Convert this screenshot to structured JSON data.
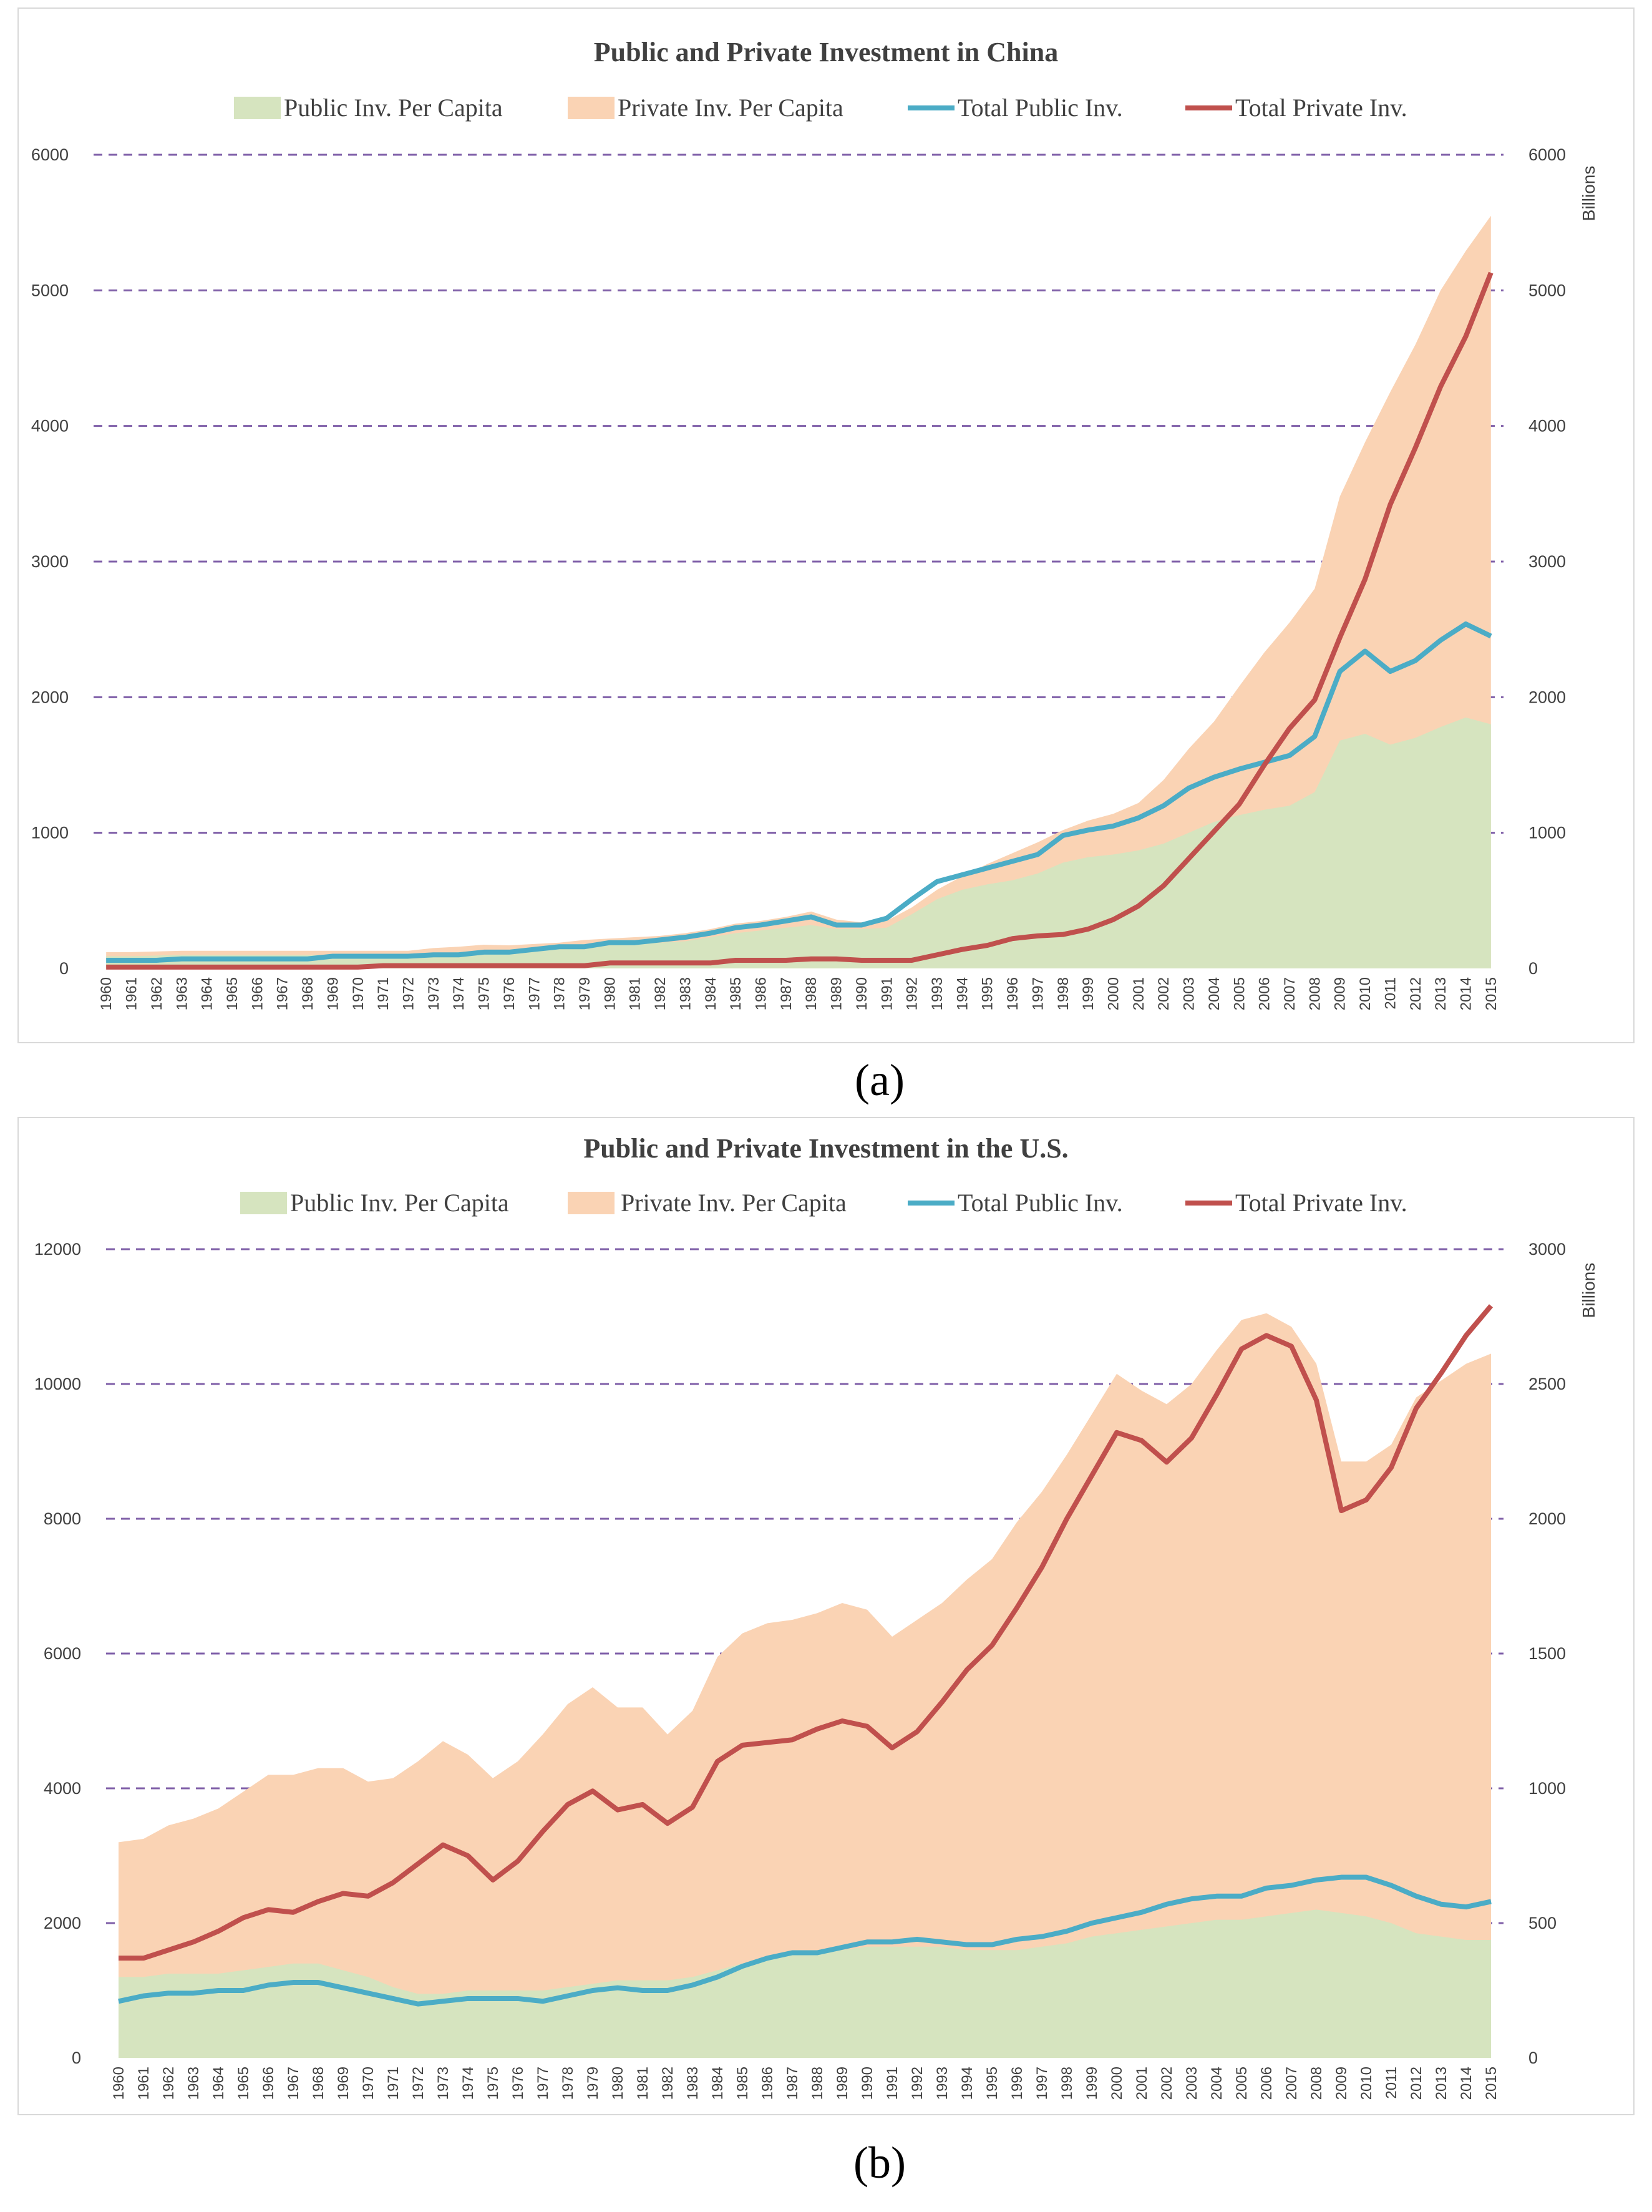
{
  "labels": {
    "a": "(a)",
    "b": "(b)"
  },
  "colors": {
    "public_area": "#d6e4bf",
    "private_area": "#fad3b4",
    "total_public_line": "#4bacc6",
    "total_private_line": "#c0504d",
    "grid": "#7f5fa8"
  },
  "chart_data": [
    {
      "type": "area",
      "title": "Public and Private Investment in China",
      "legend": [
        "Public Inv. Per Capita",
        "Private Inv. Per Capita",
        "Total Public Inv.",
        "Total Private Inv."
      ],
      "right_axis_label": "Billions",
      "x": [
        1960,
        1961,
        1962,
        1963,
        1964,
        1965,
        1966,
        1967,
        1968,
        1969,
        1970,
        1971,
        1972,
        1973,
        1974,
        1975,
        1976,
        1977,
        1978,
        1979,
        1980,
        1981,
        1982,
        1983,
        1984,
        1985,
        1986,
        1987,
        1988,
        1989,
        1990,
        1991,
        1992,
        1993,
        1994,
        1995,
        1996,
        1997,
        1998,
        1999,
        2000,
        2001,
        2002,
        2003,
        2004,
        2005,
        2006,
        2007,
        2008,
        2009,
        2010,
        2011,
        2012,
        2013,
        2014,
        2015
      ],
      "left_ylim": [
        0,
        6000
      ],
      "left_ticks": [
        0,
        1000,
        2000,
        3000,
        4000,
        5000,
        6000
      ],
      "right_ylim": [
        0,
        6000
      ],
      "right_ticks": [
        0,
        1000,
        2000,
        3000,
        4000,
        5000,
        6000
      ],
      "series": [
        {
          "name": "Public Inv. Per Capita",
          "kind": "area",
          "axis": "left",
          "values": [
            90,
            90,
            95,
            100,
            100,
            100,
            100,
            100,
            100,
            100,
            100,
            100,
            100,
            110,
            120,
            130,
            130,
            140,
            150,
            150,
            170,
            180,
            190,
            200,
            230,
            260,
            280,
            300,
            320,
            290,
            290,
            300,
            400,
            510,
            580,
            620,
            650,
            700,
            780,
            820,
            840,
            870,
            920,
            1000,
            1080,
            1130,
            1170,
            1200,
            1300,
            1680,
            1730,
            1650,
            1700,
            1780,
            1850,
            1800
          ]
        },
        {
          "name": "Private Inv. Per Capita",
          "kind": "area",
          "axis": "left",
          "stacked": true,
          "values": [
            30,
            30,
            30,
            30,
            30,
            30,
            30,
            30,
            30,
            30,
            30,
            30,
            30,
            40,
            40,
            45,
            40,
            40,
            40,
            60,
            50,
            50,
            50,
            60,
            60,
            70,
            70,
            80,
            100,
            70,
            50,
            50,
            50,
            70,
            100,
            150,
            200,
            230,
            240,
            270,
            300,
            350,
            470,
            620,
            740,
            950,
            1160,
            1350,
            1500,
            1800,
            2150,
            2600,
            2900,
            3220,
            3440,
            3750
          ]
        },
        {
          "name": "Total Public Inv.",
          "kind": "line",
          "axis": "right",
          "values": [
            60,
            60,
            60,
            70,
            70,
            70,
            70,
            70,
            70,
            90,
            90,
            90,
            90,
            100,
            100,
            120,
            120,
            140,
            160,
            160,
            190,
            190,
            210,
            230,
            260,
            300,
            320,
            350,
            380,
            320,
            320,
            370,
            510,
            640,
            690,
            740,
            790,
            840,
            980,
            1020,
            1050,
            1110,
            1200,
            1330,
            1410,
            1470,
            1520,
            1570,
            1710,
            2190,
            2340,
            2190,
            2270,
            2420,
            2540,
            2450
          ]
        },
        {
          "name": "Total Private Inv.",
          "kind": "line",
          "axis": "right",
          "values": [
            10,
            10,
            10,
            10,
            10,
            10,
            10,
            10,
            10,
            10,
            10,
            20,
            20,
            20,
            20,
            20,
            20,
            20,
            20,
            20,
            40,
            40,
            40,
            40,
            40,
            60,
            60,
            60,
            70,
            70,
            60,
            60,
            60,
            100,
            140,
            170,
            220,
            240,
            250,
            290,
            360,
            460,
            610,
            810,
            1010,
            1210,
            1500,
            1770,
            1980,
            2440,
            2870,
            3420,
            3840,
            4290,
            4660,
            5130
          ]
        }
      ]
    },
    {
      "type": "area",
      "title": "Public and Private Investment in the U.S.",
      "legend": [
        "Public Inv. Per Capita",
        "Private Inv. Per Capita",
        "Total Public Inv.",
        "Total Private Inv."
      ],
      "right_axis_label": "Billions",
      "x": [
        1960,
        1961,
        1962,
        1963,
        1964,
        1965,
        1966,
        1967,
        1968,
        1969,
        1970,
        1971,
        1972,
        1973,
        1974,
        1975,
        1976,
        1977,
        1978,
        1979,
        1980,
        1981,
        1982,
        1983,
        1984,
        1985,
        1986,
        1987,
        1988,
        1989,
        1990,
        1991,
        1992,
        1993,
        1994,
        1995,
        1996,
        1997,
        1998,
        1999,
        2000,
        2001,
        2002,
        2003,
        2004,
        2005,
        2006,
        2007,
        2008,
        2009,
        2010,
        2011,
        2012,
        2013,
        2014,
        2015
      ],
      "left_ylim": [
        0,
        12000
      ],
      "left_ticks": [
        0,
        2000,
        4000,
        6000,
        8000,
        10000,
        12000
      ],
      "right_ylim": [
        0,
        3000
      ],
      "right_ticks": [
        0,
        500,
        1000,
        1500,
        2000,
        2500,
        3000
      ],
      "series": [
        {
          "name": "Public Inv. Per Capita",
          "kind": "area",
          "axis": "left",
          "values": [
            1200,
            1200,
            1250,
            1250,
            1250,
            1300,
            1350,
            1400,
            1400,
            1300,
            1200,
            1050,
            950,
            950,
            1000,
            1000,
            1000,
            1000,
            1050,
            1100,
            1150,
            1150,
            1150,
            1200,
            1300,
            1400,
            1500,
            1550,
            1550,
            1600,
            1650,
            1650,
            1650,
            1650,
            1600,
            1600,
            1600,
            1650,
            1700,
            1800,
            1850,
            1900,
            1950,
            2000,
            2050,
            2050,
            2100,
            2150,
            2200,
            2150,
            2100,
            2000,
            1850,
            1800,
            1750,
            1750
          ]
        },
        {
          "name": "Private Inv. Per Capita",
          "kind": "area",
          "axis": "left",
          "stacked": true,
          "values": [
            2000,
            2050,
            2200,
            2300,
            2450,
            2650,
            2850,
            2800,
            2900,
            3000,
            2900,
            3100,
            3450,
            3750,
            3500,
            3150,
            3400,
            3800,
            4200,
            4400,
            4050,
            4050,
            3650,
            3950,
            4650,
            4900,
            4950,
            4950,
            5050,
            5150,
            5000,
            4600,
            4850,
            5100,
            5500,
            5800,
            6350,
            6750,
            7250,
            7750,
            8300,
            8000,
            7750,
            8000,
            8450,
            8900,
            8950,
            8700,
            8100,
            6700,
            6750,
            7100,
            7950,
            8250,
            8550,
            8700
          ]
        },
        {
          "name": "Total Public Inv.",
          "kind": "line",
          "axis": "right",
          "values": [
            210,
            230,
            240,
            240,
            250,
            250,
            270,
            280,
            280,
            260,
            240,
            220,
            200,
            210,
            220,
            220,
            220,
            210,
            230,
            250,
            260,
            250,
            250,
            270,
            300,
            340,
            370,
            390,
            390,
            410,
            430,
            430,
            440,
            430,
            420,
            420,
            440,
            450,
            470,
            500,
            520,
            540,
            570,
            590,
            600,
            600,
            630,
            640,
            660,
            670,
            670,
            640,
            600,
            570,
            560,
            580
          ]
        },
        {
          "name": "Total Private Inv.",
          "kind": "line",
          "axis": "right",
          "values": [
            370,
            370,
            400,
            430,
            470,
            520,
            550,
            540,
            580,
            610,
            600,
            650,
            720,
            790,
            750,
            660,
            730,
            840,
            940,
            990,
            920,
            940,
            870,
            930,
            1100,
            1160,
            1170,
            1180,
            1220,
            1250,
            1230,
            1150,
            1210,
            1320,
            1440,
            1530,
            1670,
            1820,
            2000,
            2160,
            2320,
            2290,
            2210,
            2300,
            2460,
            2630,
            2680,
            2640,
            2440,
            2030,
            2070,
            2190,
            2410,
            2540,
            2680,
            2790
          ]
        }
      ]
    }
  ]
}
